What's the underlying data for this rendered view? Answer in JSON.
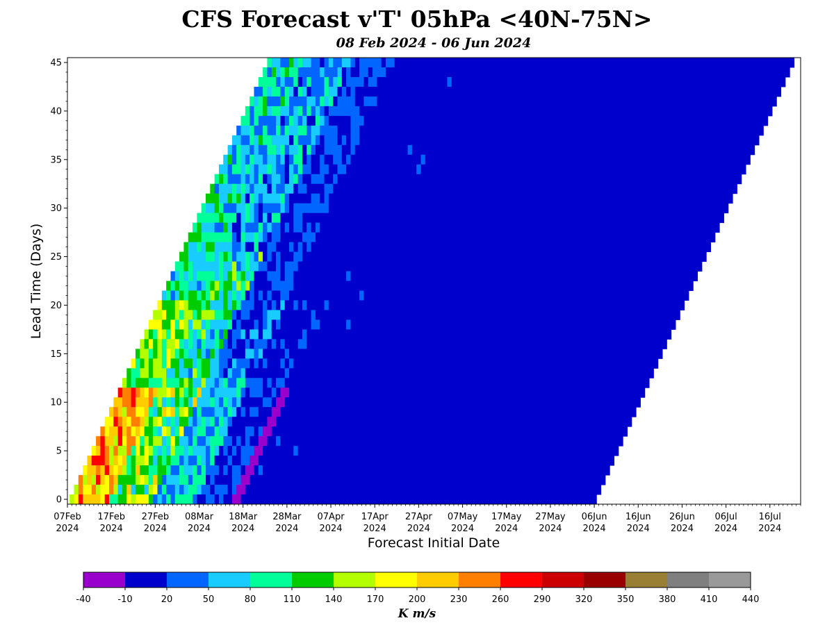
{
  "title": "CFS Forecast v'T' 05hPa <40N-75N>",
  "subtitle": "08 Feb 2024 - 06 Jun 2024",
  "chart_data": {
    "type": "heatmap",
    "xlabel": "Forecast Initial Date",
    "ylabel": "Lead Time (Days)",
    "x_ticks": [
      {
        "line1": "07Feb",
        "line2": "2024"
      },
      {
        "line1": "17Feb",
        "line2": "2024"
      },
      {
        "line1": "27Feb",
        "line2": "2024"
      },
      {
        "line1": "08Mar",
        "line2": "2024"
      },
      {
        "line1": "18Mar",
        "line2": "2024"
      },
      {
        "line1": "28Mar",
        "line2": "2024"
      },
      {
        "line1": "07Apr",
        "line2": "2024"
      },
      {
        "line1": "17Apr",
        "line2": "2024"
      },
      {
        "line1": "27Apr",
        "line2": "2024"
      },
      {
        "line1": "07May",
        "line2": "2024"
      },
      {
        "line1": "17May",
        "line2": "2024"
      },
      {
        "line1": "27May",
        "line2": "2024"
      },
      {
        "line1": "06Jun",
        "line2": "2024"
      },
      {
        "line1": "16Jun",
        "line2": "2024"
      },
      {
        "line1": "26Jun",
        "line2": "2024"
      },
      {
        "line1": "06Jul",
        "line2": "2024"
      },
      {
        "line1": "16Jul",
        "line2": "2024"
      }
    ],
    "y_ticks": [
      0,
      5,
      10,
      15,
      20,
      25,
      30,
      35,
      40,
      45
    ],
    "x_range": [
      "2024-02-07",
      "2024-07-23"
    ],
    "ylim": [
      -0.5,
      45.5
    ],
    "colorbar": {
      "label": "K m/s",
      "boundaries": [
        -40,
        -10,
        20,
        50,
        80,
        110,
        140,
        170,
        200,
        230,
        260,
        290,
        320,
        350,
        380,
        410,
        440
      ],
      "colors": [
        "#9900cc",
        "#0000cc",
        "#0066ff",
        "#19ccff",
        "#00ff99",
        "#00cc00",
        "#b3ff00",
        "#ffff00",
        "#ffcc00",
        "#ff7f00",
        "#ff0000",
        "#cc0000",
        "#990000",
        "#997f33",
        "#7f7f7f",
        "#999999"
      ]
    },
    "lead_days": 46,
    "data_approximate": "Per lead day, values (K m/s) by initialization date from 08 Feb. Early Feb, short leads: 140-290 (yellow/orange/red); mid Feb-early Mar: 20-140 (blue/cyan/green); mid Mar onward: -10 to 20 (dark blue); short-lead minimum near 18 Mar: -40 to -10 (purple). Verification period ends 06 Jun; late-period bands are dark blue (-10 to 20).",
    "data_start_date": "2024-02-08",
    "data_end_date": "2024-06-06"
  }
}
